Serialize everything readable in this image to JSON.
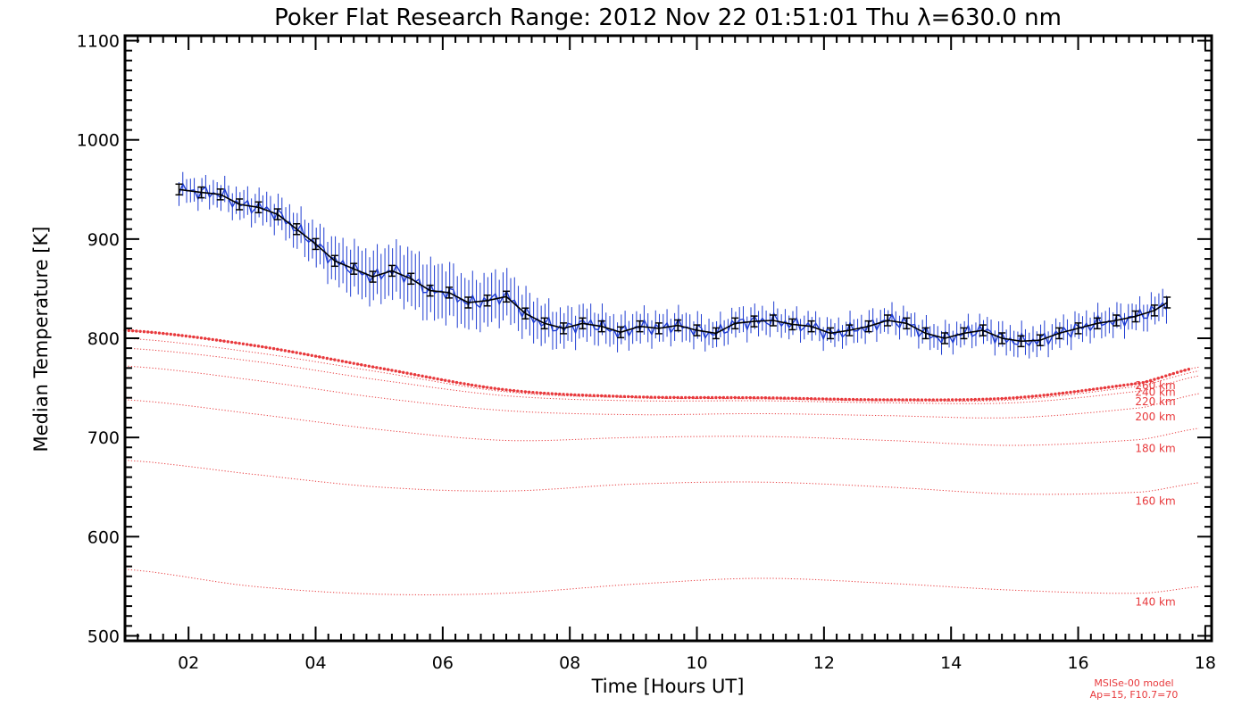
{
  "chart_data": {
    "type": "line",
    "title": "Poker Flat Research Range: 2012 Nov 22 01:51:01 Thu λ=630.0 nm",
    "xlabel": "Time [Hours UT]",
    "ylabel": "Median Temperature [K]",
    "xlim": [
      1.0,
      18.1
    ],
    "ylim": [
      495,
      1105
    ],
    "xticks": [
      2,
      4,
      6,
      8,
      10,
      12,
      14,
      16,
      18
    ],
    "xtick_labels": [
      "02",
      "04",
      "06",
      "08",
      "10",
      "12",
      "14",
      "16",
      "18"
    ],
    "yticks": [
      500,
      600,
      700,
      800,
      900,
      1000,
      1100
    ],
    "ytick_labels": [
      "500",
      "600",
      "700",
      "800",
      "900",
      "1000",
      "1100"
    ],
    "grid": false,
    "colors": {
      "measured": "#1e3cd2",
      "median": "#000000",
      "model": "#e8393c"
    },
    "measured_series": {
      "x": [
        1.85,
        2.2,
        2.5,
        2.8,
        3.1,
        3.4,
        3.7,
        4.0,
        4.3,
        4.6,
        4.9,
        5.2,
        5.5,
        5.8,
        6.1,
        6.4,
        6.7,
        7.0,
        7.3,
        7.6,
        7.9,
        8.2,
        8.5,
        8.8,
        9.1,
        9.4,
        9.7,
        10.0,
        10.3,
        10.6,
        10.9,
        11.2,
        11.5,
        11.8,
        12.1,
        12.4,
        12.7,
        13.0,
        13.3,
        13.6,
        13.9,
        14.2,
        14.5,
        14.8,
        15.1,
        15.4,
        15.7,
        16.0,
        16.3,
        16.6,
        16.9,
        17.2,
        17.4
      ],
      "y": [
        950,
        947,
        945,
        935,
        932,
        925,
        910,
        895,
        878,
        870,
        862,
        868,
        860,
        848,
        846,
        836,
        838,
        842,
        825,
        815,
        810,
        815,
        812,
        806,
        812,
        810,
        813,
        808,
        805,
        815,
        817,
        818,
        814,
        812,
        805,
        808,
        812,
        818,
        815,
        805,
        800,
        805,
        808,
        800,
        797,
        798,
        805,
        810,
        815,
        818,
        822,
        828,
        836
      ],
      "err": [
        12,
        12,
        13,
        14,
        15,
        16,
        18,
        20,
        22,
        24,
        25,
        26,
        28,
        28,
        27,
        25,
        25,
        24,
        22,
        20,
        18,
        17,
        16,
        15,
        15,
        14,
        14,
        14,
        13,
        13,
        13,
        12,
        12,
        12,
        12,
        12,
        12,
        12,
        12,
        12,
        12,
        12,
        12,
        13,
        13,
        13,
        13,
        13,
        13,
        13,
        13,
        14,
        14
      ]
    },
    "model_series": [
      {
        "name": "140 km",
        "x": [
          1.0,
          3.0,
          5.0,
          7.0,
          9.0,
          11.0,
          13.0,
          15.0,
          17.0,
          18.0
        ],
        "y": [
          567,
          550,
          542,
          543,
          552,
          558,
          553,
          546,
          543,
          550
        ]
      },
      {
        "name": "160 km",
        "x": [
          1.0,
          3.0,
          5.0,
          7.0,
          9.0,
          11.0,
          13.0,
          15.0,
          17.0,
          18.0
        ],
        "y": [
          677,
          663,
          650,
          646,
          653,
          655,
          650,
          643,
          645,
          655
        ]
      },
      {
        "name": "180 km",
        "x": [
          1.0,
          3.0,
          5.0,
          7.0,
          9.0,
          11.0,
          13.0,
          15.0,
          17.0,
          18.0
        ],
        "y": [
          738,
          724,
          708,
          697,
          700,
          701,
          697,
          692,
          698,
          710
        ]
      },
      {
        "name": "200 km",
        "x": [
          1.0,
          3.0,
          5.0,
          7.0,
          9.0,
          11.0,
          13.0,
          15.0,
          17.0,
          18.0
        ],
        "y": [
          772,
          758,
          740,
          727,
          723,
          724,
          722,
          720,
          730,
          745
        ]
      },
      {
        "name": "220 km",
        "x": [
          1.0,
          3.0,
          5.0,
          7.0,
          9.0,
          11.0,
          13.0,
          15.0,
          17.0,
          18.0
        ],
        "y": [
          790,
          777,
          758,
          742,
          737,
          737,
          735,
          735,
          747,
          763
        ]
      },
      {
        "name": "240 km",
        "x": [
          1.0,
          3.0,
          5.0,
          7.0,
          9.0,
          11.0,
          13.0,
          15.0,
          17.0,
          18.0
        ],
        "y": [
          800,
          786,
          766,
          746,
          740,
          739,
          737,
          738,
          752,
          768
        ]
      },
      {
        "name": "260 km",
        "x": [
          1.0,
          3.0,
          5.0,
          7.0,
          9.0,
          11.0,
          13.0,
          15.0,
          17.0,
          18.0
        ],
        "y": [
          808,
          793,
          770,
          748,
          741,
          740,
          738,
          740,
          755,
          772
        ]
      }
    ],
    "reference_altitude": "260 km",
    "model_labels": [
      "140 km",
      "160 km",
      "180 km",
      "200 km",
      "220 km",
      "240 km",
      "260 km"
    ],
    "model_note": [
      "MSISe-00 model",
      "Ap=15, F10.7=70"
    ]
  }
}
